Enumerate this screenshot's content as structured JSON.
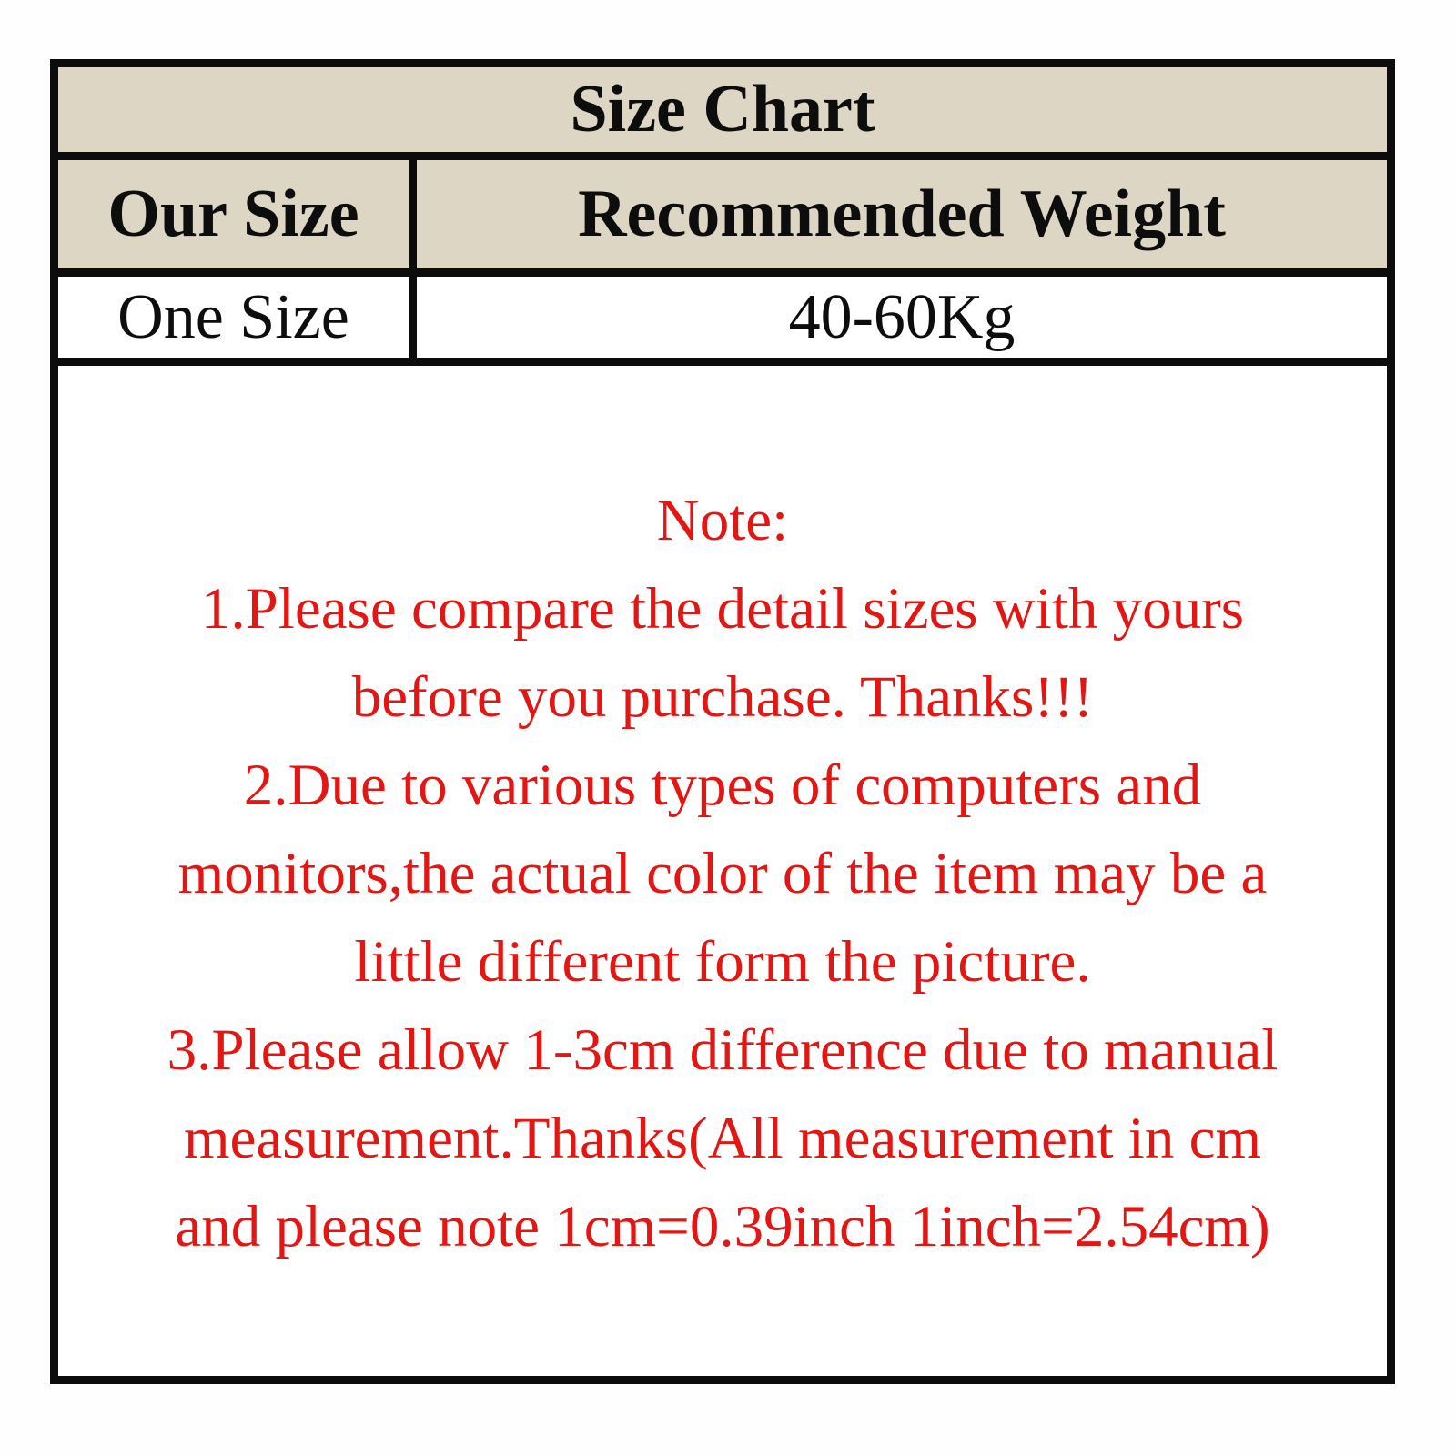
{
  "table": {
    "title": "Size Chart",
    "columns": [
      "Our Size",
      "Recommended Weight"
    ],
    "rows": [
      {
        "size": "One Size",
        "weight": "40-60Kg"
      }
    ]
  },
  "note": {
    "lines": [
      "Note:",
      "1.Please compare the detail sizes with yours",
      "before you purchase. Thanks!!!",
      "2.Due to various types of computers and",
      "monitors,the actual color of the item may be a",
      "little different form the picture.",
      "3.Please allow 1-3cm difference due to manual",
      "measurement.Thanks(All measurement in cm",
      "and please note 1cm=0.39inch 1inch=2.54cm)"
    ]
  },
  "colors": {
    "header_bg": "#DDD6C4",
    "note_red": "#E21613",
    "border_black": "#0C0C0C",
    "page_bg": "#FEFEFE"
  }
}
